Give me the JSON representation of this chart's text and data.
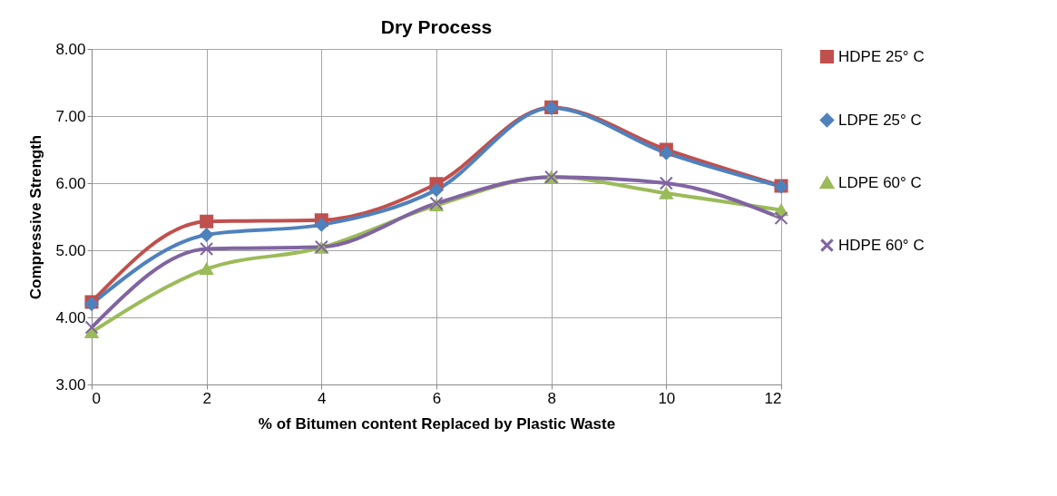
{
  "chart_data": {
    "type": "line",
    "title": "Dry Process",
    "xlabel": "% of Bitumen content Replaced by Plastic Waste",
    "ylabel": "Compressive  Strength",
    "x": [
      0,
      2,
      4,
      6,
      8,
      10,
      12
    ],
    "series": [
      {
        "name": "HDPE 25° C",
        "color": "#c0504d",
        "marker": "square",
        "values": [
          4.23,
          5.43,
          5.45,
          5.99,
          7.13,
          6.5,
          5.96
        ]
      },
      {
        "name": "LDPE 25° C",
        "color": "#4f81bd",
        "marker": "diamond",
        "values": [
          4.2,
          5.23,
          5.38,
          5.9,
          7.12,
          6.45,
          5.95
        ]
      },
      {
        "name": "LDPE 60° C",
        "color": "#9bbb59",
        "marker": "triangle",
        "values": [
          3.78,
          4.72,
          5.04,
          5.67,
          6.09,
          5.85,
          5.6
        ]
      },
      {
        "name": "HDPE 60° C",
        "color": "#8064a2",
        "marker": "cross",
        "values": [
          3.85,
          5.02,
          5.05,
          5.7,
          6.09,
          6.0,
          5.48
        ]
      }
    ],
    "xlim": [
      0,
      12
    ],
    "xticks": [
      {
        "value": 0,
        "label": "0"
      },
      {
        "value": 2,
        "label": "2"
      },
      {
        "value": 4,
        "label": "4"
      },
      {
        "value": 6,
        "label": "6"
      },
      {
        "value": 8,
        "label": "8"
      },
      {
        "value": 10,
        "label": "10"
      },
      {
        "value": 12,
        "label": "12"
      }
    ],
    "ylim": [
      3,
      8
    ],
    "yticks": [
      {
        "value": 3,
        "label": "3.00"
      },
      {
        "value": 4,
        "label": "4.00"
      },
      {
        "value": 5,
        "label": "5.00"
      },
      {
        "value": 6,
        "label": "6.00"
      },
      {
        "value": 7,
        "label": "7.00"
      },
      {
        "value": 8,
        "label": "8.00"
      }
    ],
    "grid": true,
    "legend": "right",
    "line_style": "solid"
  }
}
